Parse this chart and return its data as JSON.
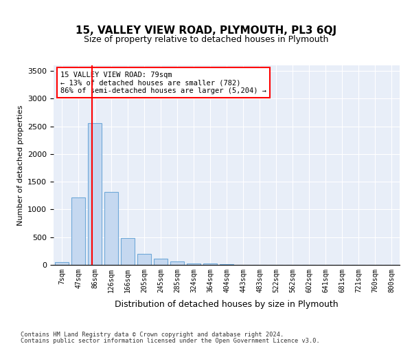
{
  "title": "15, VALLEY VIEW ROAD, PLYMOUTH, PL3 6QJ",
  "subtitle": "Size of property relative to detached houses in Plymouth",
  "xlabel": "Distribution of detached houses by size in Plymouth",
  "ylabel": "Number of detached properties",
  "bar_color": "#c5d8f0",
  "bar_edge_color": "#6fa8d8",
  "background_color": "#e8eef8",
  "bins": [
    "7sqm",
    "47sqm",
    "86sqm",
    "126sqm",
    "166sqm",
    "205sqm",
    "245sqm",
    "285sqm",
    "324sqm",
    "364sqm",
    "404sqm",
    "443sqm",
    "483sqm",
    "522sqm",
    "562sqm",
    "602sqm",
    "641sqm",
    "681sqm",
    "721sqm",
    "760sqm",
    "800sqm"
  ],
  "values": [
    50,
    1220,
    2560,
    1310,
    480,
    200,
    110,
    60,
    30,
    20,
    10,
    5,
    3,
    2,
    1,
    1,
    0,
    0,
    0,
    0,
    0
  ],
  "ylim": [
    0,
    3600
  ],
  "yticks": [
    0,
    500,
    1000,
    1500,
    2000,
    2500,
    3000,
    3500
  ],
  "annotation_text": "15 VALLEY VIEW ROAD: 79sqm\n← 13% of detached houses are smaller (782)\n86% of semi-detached houses are larger (5,204) →",
  "footer_line1": "Contains HM Land Registry data © Crown copyright and database right 2024.",
  "footer_line2": "Contains public sector information licensed under the Open Government Licence v3.0."
}
